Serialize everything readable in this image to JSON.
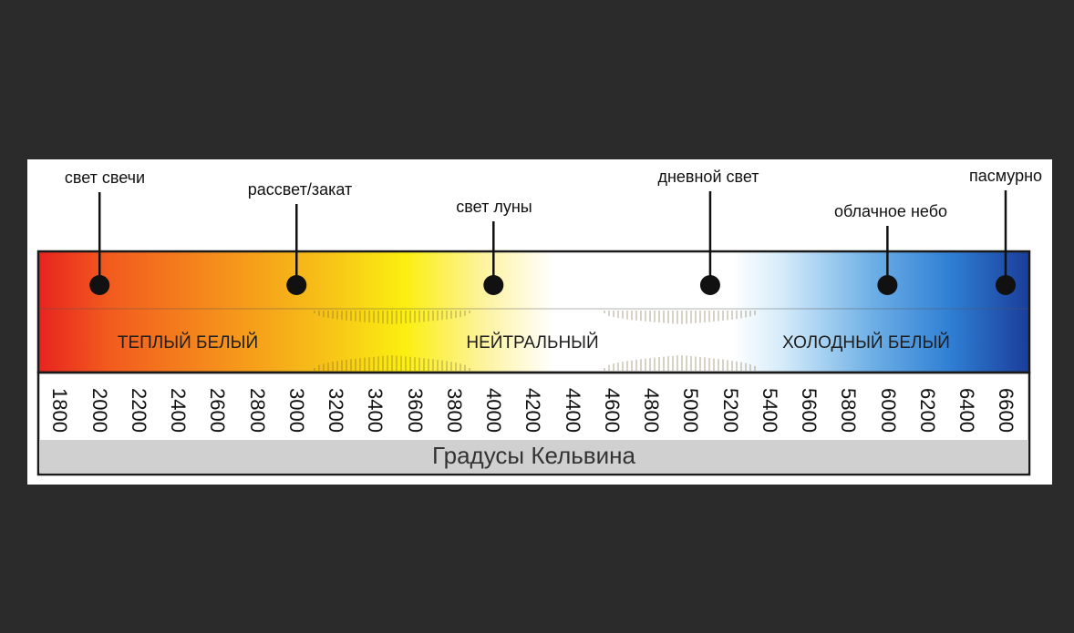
{
  "callouts": [
    {
      "label": "свет свечи",
      "kelvin": 2000
    },
    {
      "label": "рассвет/закат",
      "kelvin": 3000
    },
    {
      "label": "свет луны",
      "kelvin": 4000
    },
    {
      "label": "дневной свет",
      "kelvin": 5100
    },
    {
      "label": "облачное небо",
      "kelvin": 6000
    },
    {
      "label": "пасмурно",
      "kelvin": 6600
    }
  ],
  "bands": [
    {
      "label": "ТЕПЛЫЙ БЕЛЫЙ",
      "kelvin": 2400
    },
    {
      "label": "НЕЙТРАЛЬНЫЙ",
      "kelvin": 3900
    },
    {
      "label": "ХОЛОДНЫЙ БЕЛЫЙ",
      "kelvin": 5950
    }
  ],
  "ticks": [
    "1800",
    "2000",
    "2200",
    "2400",
    "2600",
    "2800",
    "3000",
    "3200",
    "3400",
    "3600",
    "3800",
    "4000",
    "4200",
    "4400",
    "4600",
    "4800",
    "5000",
    "5200",
    "5400",
    "5600",
    "5800",
    "6000",
    "6200",
    "6400",
    "6600"
  ],
  "scale_title": "Градусы Кельвина",
  "colors": {
    "background": "#2b2b2b",
    "panel": "#ffffff",
    "footer_bar": "#d0d0d0",
    "gradient_stops": [
      "#e8231f",
      "#f25a1e",
      "#f5891c",
      "#f7c218",
      "#fbef10",
      "#fdf3a0",
      "#ffffff",
      "#ffffff",
      "#d6ecfa",
      "#6fb0e6",
      "#2f7fd4",
      "#1a3d9a"
    ]
  }
}
